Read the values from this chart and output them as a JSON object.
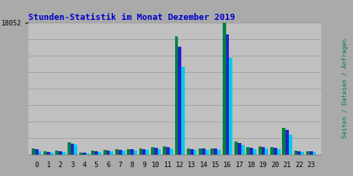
{
  "title": "Stunden-Statistik im Monat Dezember 2019",
  "title_color": "#0000CC",
  "title_fontsize": 9,
  "background_color": "#AAAAAA",
  "plot_bg_color": "#C0C0C0",
  "grid_color": "#999999",
  "ymax_label": "18052",
  "ytick_val": 18052,
  "ylim": 18052,
  "hours": [
    0,
    1,
    2,
    3,
    4,
    5,
    6,
    7,
    8,
    9,
    10,
    11,
    12,
    13,
    14,
    15,
    16,
    17,
    18,
    19,
    20,
    21,
    22,
    23
  ],
  "seiten": [
    900,
    500,
    560,
    1700,
    340,
    570,
    640,
    760,
    820,
    890,
    1060,
    1200,
    16200,
    900,
    910,
    910,
    18052,
    1800,
    1100,
    1200,
    1080,
    3700,
    590,
    530
  ],
  "dateien": [
    760,
    430,
    500,
    1560,
    300,
    500,
    570,
    700,
    760,
    800,
    970,
    1100,
    14800,
    820,
    830,
    830,
    16500,
    1650,
    1000,
    1100,
    980,
    3400,
    540,
    480
  ],
  "anfragen": [
    530,
    350,
    400,
    1420,
    260,
    430,
    490,
    550,
    600,
    640,
    780,
    870,
    12100,
    650,
    660,
    660,
    13300,
    1300,
    800,
    870,
    760,
    2750,
    430,
    380
  ],
  "color_seiten": "#008040",
  "color_dateien": "#2222CC",
  "color_anfragen": "#00CCEE",
  "bar_width": 0.28,
  "n_gridlines": 8,
  "right_label": "Seiten / Dateien / Anfragen",
  "right_label_color_seiten": "#009955",
  "right_label_color_sep": "#666666",
  "right_label_color_dateien": "#3333CC",
  "right_label_color_anfragen": "#00BBCC"
}
